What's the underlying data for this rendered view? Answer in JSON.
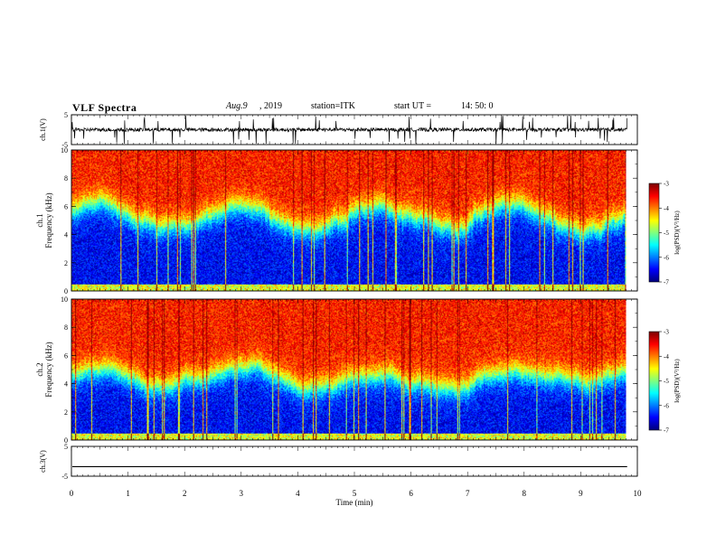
{
  "header": {
    "title": "VLF Spectra",
    "date": "Aug.9",
    "year": ", 2019",
    "station": "station=ITK",
    "start_label": "start  UT  =",
    "start_time": "14: 50: 0"
  },
  "chart_data": [
    {
      "type": "line",
      "panel": "ch1-waveform",
      "ylabel": "ch.1(V)",
      "ylim": [
        -5,
        5
      ],
      "yticks": [
        "5",
        "-5"
      ],
      "xlim": [
        0,
        10
      ],
      "baseline": 0,
      "noise_amplitude": 1.2,
      "spikes": "frequent bursts reaching ±5 V"
    },
    {
      "type": "heatmap",
      "panel": "ch1-spectrogram",
      "ylabel_line1": "ch.1",
      "ylabel_line2": "Frequency (kHz)",
      "ylim": [
        0,
        10
      ],
      "yticks": [
        "0",
        "2",
        "4",
        "6",
        "8",
        "10"
      ],
      "xlim": [
        0,
        10
      ],
      "data_end_min": 9.8,
      "band_boundary_khz": [
        4.5,
        6.0
      ],
      "low_band_logpsd": -6.5,
      "high_band_logpsd": -3.6,
      "colorbar": {
        "label": "log(PSD)(V²/Hz)",
        "range": [
          -7,
          -3
        ],
        "ticks": [
          "-3",
          "-4",
          "-5",
          "-6",
          "-7"
        ]
      }
    },
    {
      "type": "heatmap",
      "panel": "ch2-spectrogram",
      "ylabel_line1": "ch.2",
      "ylabel_line2": "Frequency (kHz)",
      "ylim": [
        0,
        10
      ],
      "yticks": [
        "0",
        "2",
        "4",
        "6",
        "8",
        "10"
      ],
      "xlim": [
        0,
        10
      ],
      "data_end_min": 9.8,
      "band_boundary_khz": [
        4.0,
        5.0
      ],
      "low_band_logpsd": -6.5,
      "high_band_logpsd": -3.6,
      "colorbar": {
        "label": "log(PSD)(V²/Hz)",
        "range": [
          -7,
          -3
        ],
        "ticks": [
          "-3",
          "-4",
          "-5",
          "-6",
          "-7"
        ]
      }
    },
    {
      "type": "line",
      "panel": "ch3-waveform",
      "ylabel": "ch.3(V)",
      "ylim": [
        -5,
        5
      ],
      "yticks": [
        "5",
        "-5"
      ],
      "xlim": [
        0,
        10
      ],
      "constant_value": -1.8
    }
  ],
  "xaxis": {
    "label": "Time (min)",
    "ticks": [
      "0",
      "1",
      "2",
      "3",
      "4",
      "5",
      "6",
      "7",
      "8",
      "9",
      "10"
    ]
  },
  "colors": {
    "frame": "#000000",
    "trace": "#000000"
  }
}
